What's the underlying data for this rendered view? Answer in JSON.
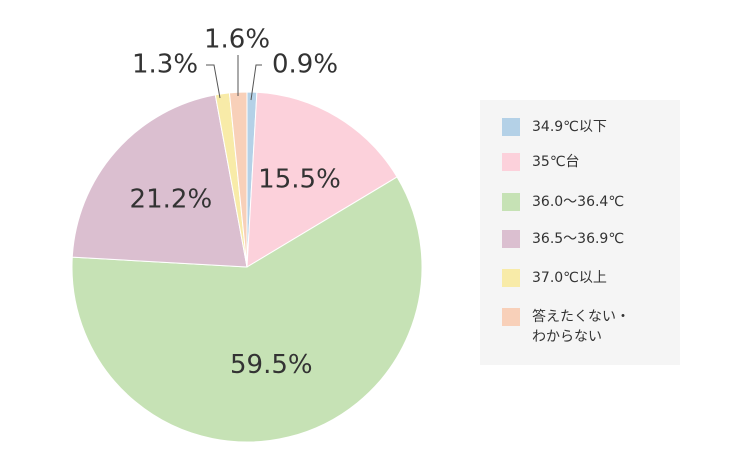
{
  "chart_data": {
    "type": "pie",
    "categories": [
      "34.9℃以下",
      "35℃台",
      "36.0〜36.4℃",
      "36.5〜36.9℃",
      "37.0℃以上",
      "答えたくない・\nわからない"
    ],
    "values": [
      0.9,
      15.5,
      59.5,
      21.2,
      1.3,
      1.6
    ],
    "value_labels": [
      "0.9%",
      "15.5%",
      "59.5%",
      "21.2%",
      "1.3%",
      "1.6%"
    ],
    "colors": [
      "#b4d1e7",
      "#fcd1db",
      "#c6e2b5",
      "#dbbfd0",
      "#f8eba8",
      "#f8d0b9"
    ],
    "legend": "right"
  }
}
